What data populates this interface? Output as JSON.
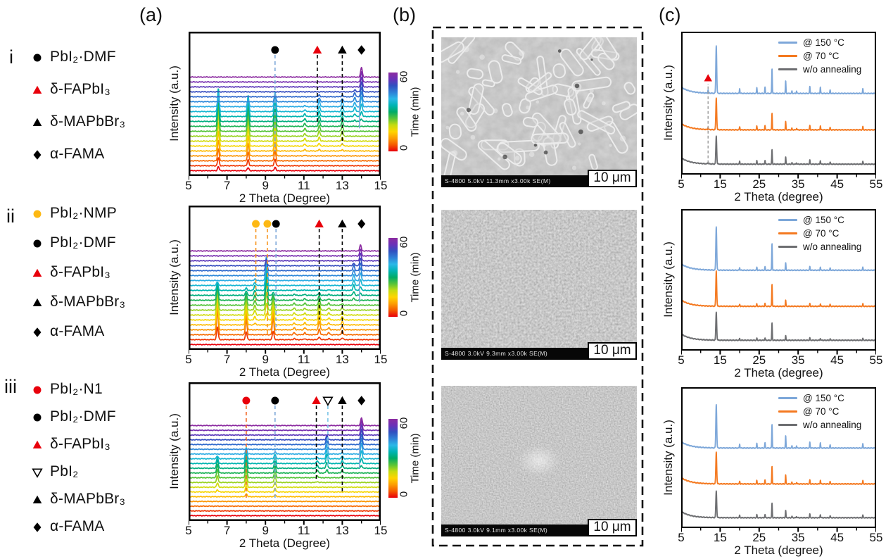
{
  "figure": {
    "panels": {
      "a": "(a)",
      "b": "(b)",
      "c": "(c)"
    },
    "rows": [
      "i",
      "ii",
      "iii"
    ]
  },
  "colors": {
    "waterfall_stops": [
      "#e8000b",
      "#f55a00",
      "#fc9d03",
      "#ffd500",
      "#c6dc10",
      "#58c437",
      "#00ab66",
      "#00b4b4",
      "#2bb8e8",
      "#2f7fd6",
      "#3050c0",
      "#6a30b8",
      "#8c2ba0"
    ],
    "c_blue": "#7da7d9",
    "c_orange": "#f47920",
    "c_gray": "#6d6e71",
    "marker_red": "#e8000b",
    "marker_gold": "#fdb813"
  },
  "legends_a": [
    {
      "row": "i",
      "items": [
        {
          "marker": "circle",
          "color": "#000000",
          "label": "PbI₂·DMF"
        },
        {
          "marker": "triangle-up",
          "color": "#e8000b",
          "label": "δ-FAPbI₃"
        },
        {
          "marker": "triangle-up",
          "color": "#000000",
          "label": "δ-MAPbBr₃"
        },
        {
          "marker": "diamond",
          "color": "#000000",
          "label": "α-FAMA"
        }
      ]
    },
    {
      "row": "ii",
      "items": [
        {
          "marker": "circle",
          "color": "#fdb813",
          "label": "PbI₂·NMP"
        },
        {
          "marker": "circle",
          "color": "#000000",
          "label": "PbI₂·DMF"
        },
        {
          "marker": "triangle-up",
          "color": "#e8000b",
          "label": "δ-FAPbI₃"
        },
        {
          "marker": "triangle-up",
          "color": "#000000",
          "label": "δ-MAPbBr₃"
        },
        {
          "marker": "diamond",
          "color": "#000000",
          "label": "α-FAMA"
        }
      ]
    },
    {
      "row": "iii",
      "items": [
        {
          "marker": "circle",
          "color": "#e8000b",
          "label": "PbI₂·N1"
        },
        {
          "marker": "circle",
          "color": "#000000",
          "label": "PbI₂·DMF"
        },
        {
          "marker": "triangle-up",
          "color": "#e8000b",
          "label": "δ-FAPbI₃"
        },
        {
          "marker": "triangle-down-open",
          "color": "#000000",
          "label": "PbI₂"
        },
        {
          "marker": "triangle-up",
          "color": "#000000",
          "label": "δ-MAPbBr₃"
        },
        {
          "marker": "diamond",
          "color": "#000000",
          "label": "α-FAMA"
        }
      ]
    }
  ],
  "chart_data": [
    {
      "id": "a-i",
      "type": "line",
      "subtype": "xrd_waterfall",
      "xlabel": "2 Theta (Degree)",
      "ylabel": "Intensity (a.u.)",
      "xlim": [
        5,
        15
      ],
      "xticks": [
        5,
        7,
        9,
        11,
        13,
        15
      ],
      "xminor": [
        6,
        8,
        10,
        12,
        14
      ],
      "n_traces": 20,
      "colorbar": {
        "label": "Time (min)",
        "ticks": [
          0,
          60
        ]
      },
      "annotations": [
        {
          "marker": "circle",
          "color": "#000000",
          "x": 9.5
        },
        {
          "marker": "triangle-up",
          "color": "#e8000b",
          "x": 11.7
        },
        {
          "marker": "triangle-up",
          "color": "#000000",
          "x": 13.0
        },
        {
          "marker": "diamond",
          "color": "#000000",
          "x": 14.0
        }
      ],
      "guides": [
        {
          "x": 9.5,
          "color": "#7da7d9",
          "frac": 0.83
        },
        {
          "x": 11.7,
          "color": "#000000",
          "frac": 0.58
        },
        {
          "x": 13.0,
          "color": "#000000",
          "frac": 0.77
        }
      ],
      "segments": [
        {
          "x": 13.9,
          "color": "#7da7d9",
          "f0": 0.47,
          "f1": 0.67
        }
      ],
      "peaks": [
        {
          "x": 6.55,
          "amp": 40,
          "env": [
            -1,
            6,
            11,
            14
          ]
        },
        {
          "x": 8.1,
          "amp": 30,
          "env": [
            -1,
            6,
            11,
            14
          ]
        },
        {
          "x": 9.5,
          "amp": 28,
          "env": [
            -1,
            5,
            12,
            15
          ]
        },
        {
          "x": 11.05,
          "amp": 4,
          "env": [
            2,
            6,
            11,
            14
          ]
        },
        {
          "x": 11.8,
          "amp": 8,
          "env": [
            3,
            7,
            13,
            16
          ]
        },
        {
          "x": 13.0,
          "amp": 7,
          "env": [
            3,
            7,
            13,
            16
          ]
        },
        {
          "x": 13.65,
          "amp": 6,
          "env": [
            9,
            12,
            15,
            17
          ]
        },
        {
          "x": 14.0,
          "amp": 14,
          "env": [
            9,
            13,
            19,
            25
          ]
        }
      ]
    },
    {
      "id": "a-ii",
      "type": "line",
      "subtype": "xrd_waterfall",
      "xlabel": "2 Theta (Degree)",
      "ylabel": "Intensity (a.u.)",
      "xlim": [
        5,
        15
      ],
      "xticks": [
        5,
        7,
        9,
        11,
        13,
        15
      ],
      "xminor": [
        6,
        8,
        10,
        12,
        14
      ],
      "n_traces": 20,
      "colorbar": {
        "label": "Time (min)",
        "ticks": [
          0,
          60
        ]
      },
      "annotations": [
        {
          "marker": "circle",
          "color": "#fdb813",
          "x": 8.5
        },
        {
          "marker": "circle",
          "color": "#fdb813",
          "x": 9.1
        },
        {
          "marker": "circle",
          "color": "#000000",
          "x": 9.55
        },
        {
          "marker": "triangle-up",
          "color": "#e8000b",
          "x": 11.8
        },
        {
          "marker": "triangle-up",
          "color": "#000000",
          "x": 13.0
        },
        {
          "marker": "diamond",
          "color": "#000000",
          "x": 14.0
        }
      ],
      "guides": [
        {
          "x": 8.5,
          "color": "#f7941d",
          "frac": 0.62
        },
        {
          "x": 9.1,
          "color": "#f7941d",
          "frac": 0.92
        },
        {
          "x": 9.55,
          "color": "#7da7d9",
          "frac": 0.88
        },
        {
          "x": 11.8,
          "color": "#000000",
          "frac": 0.78
        },
        {
          "x": 13.0,
          "color": "#000000",
          "frac": 0.92
        }
      ],
      "segments": [
        {
          "x": 13.9,
          "color": "#7da7d9",
          "f0": 0.45,
          "f1": 0.67
        }
      ],
      "peaks": [
        {
          "x": 6.5,
          "amp": 36,
          "env": [
            0,
            2,
            6,
            13
          ]
        },
        {
          "x": 8.0,
          "amp": 22,
          "env": [
            0,
            2,
            5,
            12
          ]
        },
        {
          "x": 9.4,
          "amp": 24,
          "env": [
            0,
            2,
            5,
            11
          ]
        },
        {
          "x": 8.45,
          "amp": 7,
          "env": [
            3,
            6,
            11,
            14
          ]
        },
        {
          "x": 9.05,
          "amp": 34,
          "env": [
            4,
            8,
            13,
            17
          ]
        },
        {
          "x": 10.5,
          "amp": 3,
          "env": [
            0,
            2,
            8,
            12
          ]
        },
        {
          "x": 11.05,
          "amp": 3,
          "env": [
            0,
            2,
            8,
            12
          ]
        },
        {
          "x": 11.8,
          "amp": 12,
          "env": [
            0,
            3,
            6,
            12
          ]
        },
        {
          "x": 12.3,
          "amp": 3,
          "env": [
            0,
            2,
            8,
            12
          ]
        },
        {
          "x": 13.0,
          "amp": 5,
          "env": [
            0,
            2,
            5,
            10
          ]
        },
        {
          "x": 13.6,
          "amp": 8,
          "env": [
            8,
            11,
            15,
            17
          ]
        },
        {
          "x": 13.95,
          "amp": 11,
          "env": [
            9,
            13,
            17,
            25
          ]
        }
      ]
    },
    {
      "id": "a-iii",
      "type": "line",
      "subtype": "xrd_waterfall",
      "xlabel": "2 Theta (Degree)",
      "ylabel": "Intensity (a.u.)",
      "xlim": [
        5,
        15
      ],
      "xticks": [
        5,
        7,
        9,
        11,
        13,
        15
      ],
      "xminor": [
        6,
        8,
        10,
        12,
        14
      ],
      "n_traces": 20,
      "colorbar": {
        "label": "Time (min)",
        "ticks": [
          0,
          60
        ]
      },
      "annotations": [
        {
          "marker": "circle",
          "color": "#e8000b",
          "x": 8.0
        },
        {
          "marker": "circle",
          "color": "#000000",
          "x": 9.5
        },
        {
          "marker": "triangle-up",
          "color": "#e8000b",
          "x": 11.65
        },
        {
          "marker": "triangle-down-open",
          "color": "#000000",
          "x": 12.25
        },
        {
          "marker": "triangle-up",
          "color": "#000000",
          "x": 13.0
        },
        {
          "marker": "diamond",
          "color": "#000000",
          "x": 14.0
        }
      ],
      "guides": [
        {
          "x": 8.0,
          "color": "#f26522",
          "frac": 0.84
        },
        {
          "x": 9.5,
          "color": "#7da7d9",
          "frac": 0.84
        },
        {
          "x": 11.65,
          "color": "#000000",
          "frac": 0.68
        },
        {
          "x": 12.25,
          "color": "#7bc4e8",
          "frac": 0.58
        },
        {
          "x": 13.0,
          "color": "#000000",
          "frac": 0.78
        }
      ],
      "segments": [
        {
          "x": 13.9,
          "color": "#7da7d9",
          "f0": 0.45,
          "f1": 0.62
        }
      ],
      "peaks": [
        {
          "x": 6.5,
          "amp": 12,
          "env": [
            4,
            8,
            10,
            13
          ]
        },
        {
          "x": 8.0,
          "amp": 22,
          "env": [
            3,
            8,
            11,
            14
          ]
        },
        {
          "x": 9.5,
          "amp": 10,
          "env": [
            3,
            7,
            11,
            14
          ]
        },
        {
          "x": 11.7,
          "amp": 4,
          "env": [
            6,
            9,
            11,
            13
          ]
        },
        {
          "x": 12.2,
          "amp": 13,
          "env": [
            8,
            11,
            15,
            17
          ]
        },
        {
          "x": 13.0,
          "amp": 4,
          "env": [
            7,
            9,
            12,
            14
          ]
        },
        {
          "x": 14.0,
          "amp": 15,
          "env": [
            9,
            13,
            17,
            25
          ]
        }
      ]
    },
    {
      "id": "c-i",
      "type": "line",
      "subtype": "xrd_stack",
      "xlabel": "2 Theta (degree)",
      "ylabel": "Intensity (a.u.)",
      "xlim": [
        5,
        55
      ],
      "xticks": [
        5,
        15,
        25,
        35,
        45,
        55
      ],
      "xminor": [
        10,
        20,
        30,
        40,
        50
      ],
      "series": [
        {
          "name": "w/o annealing",
          "color": "#6d6e71",
          "base_frac": 0.93,
          "scale": 40
        },
        {
          "name": "@  70 °C",
          "color": "#f47920",
          "base_frac": 0.69,
          "scale": 45
        },
        {
          "name": "@ 150 °C",
          "color": "#7da7d9",
          "base_frac": 0.435,
          "scale": 68
        }
      ],
      "legend": [
        {
          "label": "@ 150 °C",
          "color": "#7da7d9"
        },
        {
          "label": "@  70 °C",
          "color": "#f47920"
        },
        {
          "label": "w/o annealing",
          "color": "#6d6e71"
        }
      ],
      "annotation": {
        "marker": "triangle-up",
        "color": "#e8000b",
        "x": 11.9,
        "guide_color": "#9a9a9a"
      },
      "peaks": [
        [
          11.9,
          0.07
        ],
        [
          14,
          1.0
        ],
        [
          20,
          0.1
        ],
        [
          24.4,
          0.12
        ],
        [
          26.5,
          0.13
        ],
        [
          28.3,
          0.52
        ],
        [
          31.8,
          0.26
        ],
        [
          33.4,
          0.05
        ],
        [
          34.6,
          0.05
        ],
        [
          38,
          0.14
        ],
        [
          40.7,
          0.13
        ],
        [
          43.2,
          0.07
        ],
        [
          51.6,
          0.1
        ]
      ]
    },
    {
      "id": "c-ii",
      "type": "line",
      "subtype": "xrd_stack",
      "xlabel": "2 Theta (degree)",
      "ylabel": "Intensity (a.u.)",
      "xlim": [
        5,
        55
      ],
      "xticks": [
        5,
        15,
        25,
        35,
        45,
        55
      ],
      "xminor": [
        10,
        20,
        30,
        40,
        50
      ],
      "series": [
        {
          "name": "w/o annealing",
          "color": "#6d6e71",
          "base_frac": 0.93,
          "scale": 40
        },
        {
          "name": "@  70 °C",
          "color": "#f47920",
          "base_frac": 0.69,
          "scale": 50
        },
        {
          "name": "@ 150 °C",
          "color": "#7da7d9",
          "base_frac": 0.435,
          "scale": 62
        }
      ],
      "legend": [
        {
          "label": "@ 150 °C",
          "color": "#7da7d9"
        },
        {
          "label": "@  70 °C",
          "color": "#f47920"
        },
        {
          "label": "w/o annealing",
          "color": "#6d6e71"
        }
      ],
      "annotation": null,
      "peaks": [
        [
          14,
          1.0
        ],
        [
          20,
          0.06
        ],
        [
          24.4,
          0.07
        ],
        [
          26.5,
          0.08
        ],
        [
          28.3,
          0.62
        ],
        [
          31.8,
          0.17
        ],
        [
          38,
          0.08
        ],
        [
          40.7,
          0.07
        ],
        [
          43.2,
          0.05
        ],
        [
          51.6,
          0.07
        ]
      ]
    },
    {
      "id": "c-iii",
      "type": "line",
      "subtype": "xrd_stack",
      "xlabel": "2 Theta (degree)",
      "ylabel": "Intensity (a.u.)",
      "xlim": [
        5,
        55
      ],
      "xticks": [
        5,
        15,
        25,
        35,
        45,
        55
      ],
      "xminor": [
        10,
        20,
        30,
        40,
        50
      ],
      "series": [
        {
          "name": "w/o annealing",
          "color": "#6d6e71",
          "base_frac": 0.93,
          "scale": 38
        },
        {
          "name": "@  70 °C",
          "color": "#f47920",
          "base_frac": 0.69,
          "scale": 45
        },
        {
          "name": "@ 150 °C",
          "color": "#7da7d9",
          "base_frac": 0.435,
          "scale": 62
        }
      ],
      "legend": [
        {
          "label": "@ 150 °C",
          "color": "#7da7d9"
        },
        {
          "label": "@  70 °C",
          "color": "#f47920"
        },
        {
          "label": "w/o annealing",
          "color": "#6d6e71"
        }
      ],
      "annotation": null,
      "peaks": [
        [
          14,
          1.0
        ],
        [
          20,
          0.09
        ],
        [
          24.4,
          0.11
        ],
        [
          26.5,
          0.12
        ],
        [
          28.3,
          0.55
        ],
        [
          31.8,
          0.28
        ],
        [
          33.4,
          0.05
        ],
        [
          34.6,
          0.05
        ],
        [
          38,
          0.13
        ],
        [
          40.7,
          0.12
        ],
        [
          43.2,
          0.07
        ],
        [
          51.6,
          0.1
        ]
      ]
    }
  ],
  "sem_panels": [
    {
      "caption": "S-4800 5.0kV 11.3mm x3.00k SE(M)",
      "scale_label": "10 μm",
      "texture": "rods",
      "morphology": "rod-like crystals on smooth film"
    },
    {
      "caption": "S-4800 3.0kV 9.3mm x3.00k SE(M)",
      "scale_label": "10 μm",
      "texture": "grains",
      "morphology": "dense granular film"
    },
    {
      "caption": "S-4800 3.0kV 9.1mm x3.00k SE(M)",
      "scale_label": "10 μm",
      "texture": "grains-fine",
      "morphology": "dense granular film with bright center feature"
    }
  ]
}
